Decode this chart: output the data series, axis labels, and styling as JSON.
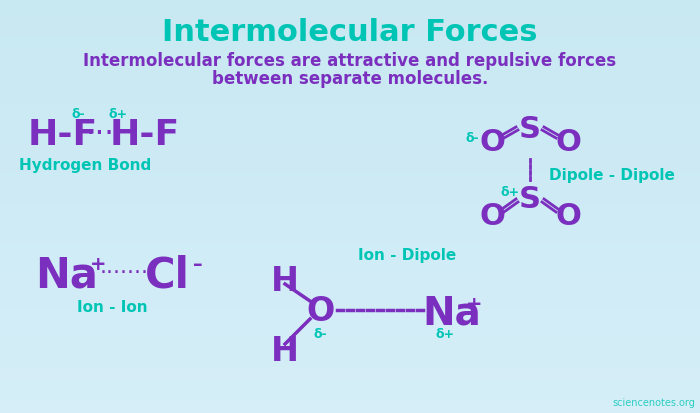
{
  "title": "Intermolecular Forces",
  "subtitle_line1": "Intermolecular forces are attractive and repulsive forces",
  "subtitle_line2": "between separate molecules.",
  "purple": "#7b2fbe",
  "teal": "#00c5b5",
  "bg_top": "#c8e8f2",
  "bg_bottom": "#d8eef8",
  "watermark": "sciencenotes.org"
}
